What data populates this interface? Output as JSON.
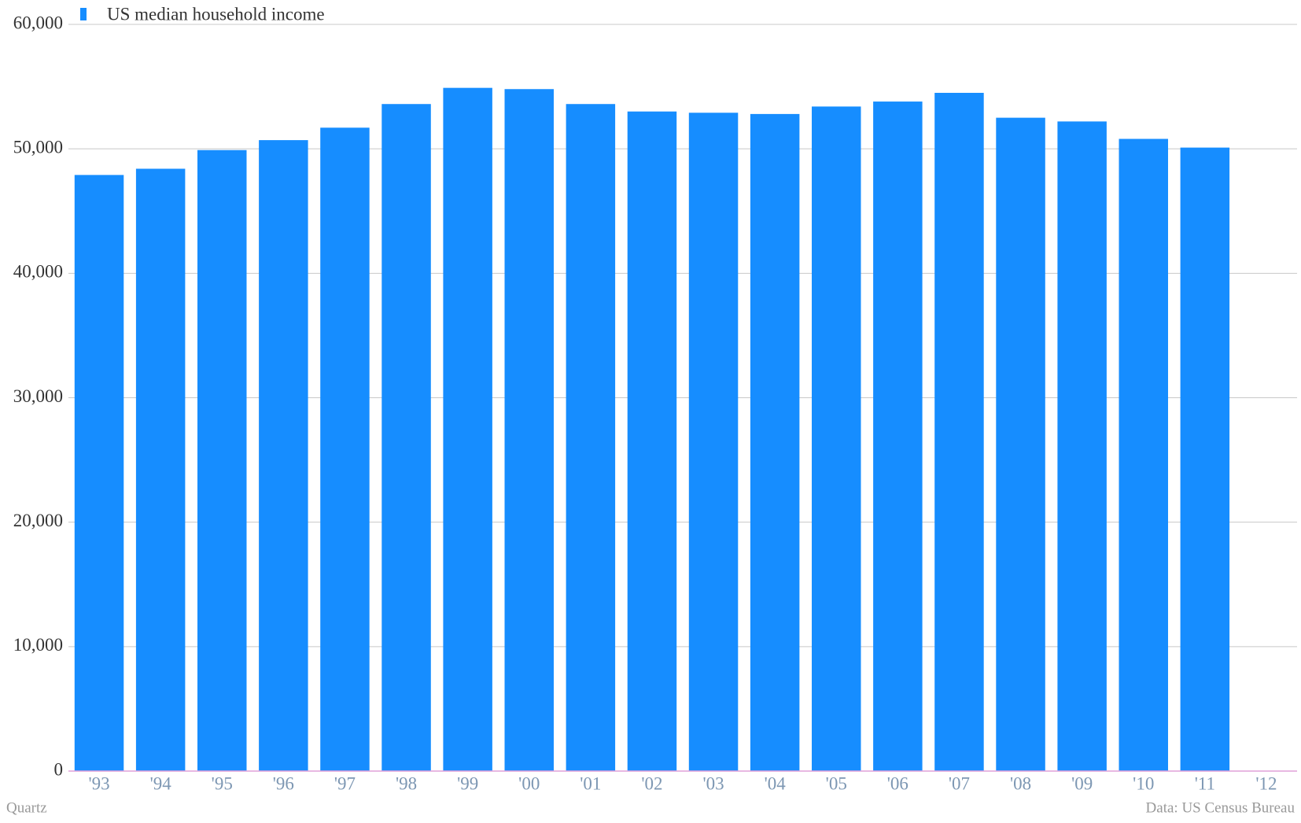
{
  "chart_data": {
    "type": "bar",
    "categories": [
      "'93",
      "'94",
      "'95",
      "'96",
      "'97",
      "'98",
      "'99",
      "'00",
      "'01",
      "'02",
      "'03",
      "'04",
      "'05",
      "'06",
      "'07",
      "'08",
      "'09",
      "'10",
      "'11",
      "'12"
    ],
    "series": [
      {
        "name": "US median household income",
        "color": "#168dff",
        "values": [
          47900,
          48400,
          49900,
          50700,
          51700,
          53600,
          54900,
          54800,
          53600,
          53000,
          52900,
          52800,
          53400,
          53800,
          54500,
          52500,
          52200,
          50800,
          50100,
          null
        ]
      }
    ],
    "ylim": [
      0,
      60000
    ],
    "yticks": [
      0,
      {
        "value": 10000,
        "label": "10,000"
      },
      {
        "value": 20000,
        "label": "20,000"
      },
      {
        "value": 30000,
        "label": "30,000"
      },
      {
        "value": 40000,
        "label": "40,000"
      },
      {
        "value": 50000,
        "label": "50,000"
      },
      {
        "value": 60000,
        "label": "60,000"
      }
    ],
    "grid": true,
    "source": "Data: US Census Bureau",
    "credit": "Quartz"
  }
}
